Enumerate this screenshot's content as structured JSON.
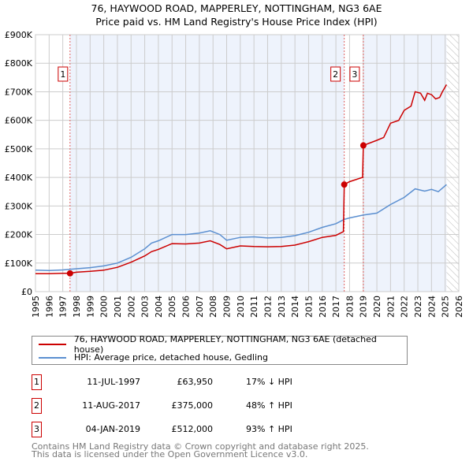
{
  "chart_data": {
    "type": "line",
    "title": "76, HAYWOOD ROAD, MAPPERLEY, NOTTINGHAM, NG3 6AE",
    "subtitle": "Price paid vs. HM Land Registry's House Price Index (HPI)",
    "xlim": [
      1995,
      2026
    ],
    "ylim": [
      0,
      900000
    ],
    "x_ticks": [
      "1995",
      "1996",
      "1997",
      "1998",
      "1999",
      "2000",
      "2001",
      "2002",
      "2003",
      "2004",
      "2005",
      "2006",
      "2007",
      "2008",
      "2009",
      "2010",
      "2011",
      "2012",
      "2013",
      "2014",
      "2015",
      "2016",
      "2017",
      "2018",
      "2019",
      "2020",
      "2021",
      "2022",
      "2023",
      "2024",
      "2025",
      "2026"
    ],
    "y_ticks": [
      {
        "v": 0,
        "l": "£0"
      },
      {
        "v": 100000,
        "l": "£100K"
      },
      {
        "v": 200000,
        "l": "£200K"
      },
      {
        "v": 300000,
        "l": "£300K"
      },
      {
        "v": 400000,
        "l": "£400K"
      },
      {
        "v": 500000,
        "l": "£500K"
      },
      {
        "v": 600000,
        "l": "£600K"
      },
      {
        "v": 700000,
        "l": "£700K"
      },
      {
        "v": 800000,
        "l": "£800K"
      },
      {
        "v": 900000,
        "l": "£900K"
      }
    ],
    "grid": true,
    "series": [
      {
        "name": "76, HAYWOOD ROAD, MAPPERLEY, NOTTINGHAM, NG3 6AE (detached house)",
        "color": "#cc0000",
        "x": [
          1995,
          1996,
          1997,
          1997.53,
          1998,
          1999,
          2000,
          2001,
          2002,
          2003,
          2003.5,
          2004,
          2005,
          2006,
          2007,
          2007.8,
          2008.5,
          2009,
          2010,
          2011,
          2012,
          2013,
          2014,
          2015,
          2016,
          2017,
          2017.55,
          2017.61,
          2018,
          2018.95,
          2019.01,
          2020,
          2020.5,
          2021,
          2021.6,
          2022,
          2022.5,
          2022.8,
          2023.2,
          2023.5,
          2023.7,
          2024,
          2024.3,
          2024.6,
          2024.8,
          2025.1
        ],
        "y": [
          63000,
          63000,
          64000,
          63950,
          68000,
          71000,
          75000,
          85000,
          103000,
          125000,
          140000,
          148000,
          168000,
          167000,
          170000,
          178000,
          165000,
          150000,
          160000,
          158000,
          157000,
          158000,
          163000,
          175000,
          190000,
          197000,
          210000,
          375000,
          385000,
          400000,
          512000,
          530000,
          540000,
          590000,
          600000,
          635000,
          650000,
          700000,
          695000,
          670000,
          695000,
          690000,
          675000,
          680000,
          700000,
          725000
        ]
      },
      {
        "name": "HPI: Average price, detached house, Gedling",
        "color": "#5b8fd0",
        "x": [
          1995,
          1996,
          1997,
          1998,
          1999,
          2000,
          2001,
          2002,
          2003,
          2003.5,
          2004,
          2005,
          2006,
          2007,
          2007.8,
          2008.5,
          2009,
          2010,
          2011,
          2012,
          2013,
          2014,
          2015,
          2016,
          2017,
          2017.6,
          2018,
          2019,
          2020,
          2021,
          2022,
          2022.8,
          2023.5,
          2024,
          2024.5,
          2025.1
        ],
        "y": [
          75000,
          74000,
          76000,
          80000,
          84000,
          90000,
          100000,
          120000,
          150000,
          170000,
          178000,
          200000,
          200000,
          205000,
          213000,
          200000,
          180000,
          190000,
          192000,
          188000,
          190000,
          196000,
          208000,
          225000,
          238000,
          253000,
          258000,
          268000,
          275000,
          305000,
          330000,
          360000,
          352000,
          358000,
          350000,
          375000
        ]
      }
    ],
    "sales": [
      {
        "n": "1",
        "x": 1997.53,
        "date": "11-JUL-1997",
        "price": "£63,950",
        "value": 63950,
        "hpi": "17% ↓ HPI"
      },
      {
        "n": "2",
        "x": 2017.61,
        "date": "11-AUG-2017",
        "price": "£375,000",
        "value": 375000,
        "hpi": "48% ↑ HPI"
      },
      {
        "n": "3",
        "x": 2019.01,
        "date": "04-JAN-2019",
        "price": "£512,000",
        "value": 512000,
        "hpi": "93% ↑ HPI"
      }
    ],
    "forecast_start": 2025.1
  },
  "footer": [
    "Contains HM Land Registry data © Crown copyright and database right 2025.",
    "This data is licensed under the Open Government Licence v3.0."
  ]
}
